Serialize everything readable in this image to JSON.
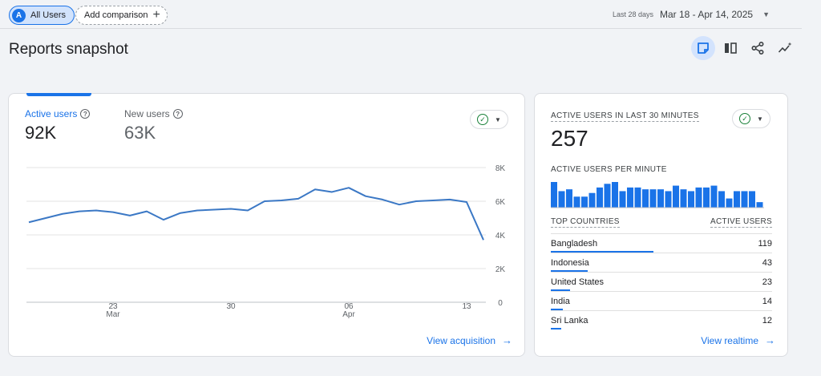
{
  "topbar": {
    "segment_avatar": "A",
    "segment_label": "All Users",
    "add_comparison_label": "Add comparison",
    "date_label": "Last 28 days",
    "date_value": "Mar 18 - Apr 14, 2025"
  },
  "page_title": "Reports snapshot",
  "toolbar": {
    "icons": [
      "customize-report-icon",
      "compare-icon",
      "share-icon",
      "insights-icon"
    ]
  },
  "overview_card": {
    "metrics": [
      {
        "label": "Active users",
        "value": "92K"
      },
      {
        "label": "New users",
        "value": "63K"
      }
    ],
    "view_link": "View acquisition"
  },
  "chart_data": {
    "type": "line",
    "series": [
      {
        "name": "Active users",
        "color": "#3b78c5",
        "values": [
          4750,
          5000,
          5250,
          5400,
          5450,
          5350,
          5150,
          5400,
          4900,
          5300,
          5450,
          5500,
          5550,
          5450,
          6000,
          6050,
          6150,
          6700,
          6550,
          6800,
          6300,
          6100,
          5800,
          6000,
          6050,
          6100,
          5950,
          3700
        ]
      }
    ],
    "x_tick_labels": [
      {
        "index": 5,
        "day": "23",
        "month": "Mar"
      },
      {
        "index": 12,
        "day": "30",
        "month": ""
      },
      {
        "index": 19,
        "day": "06",
        "month": "Apr"
      },
      {
        "index": 26,
        "day": "13",
        "month": ""
      }
    ],
    "y_ticks": [
      "0",
      "2K",
      "4K",
      "6K",
      "8K"
    ],
    "ylim": [
      0,
      8000
    ],
    "grid": true
  },
  "realtime_card": {
    "title": "ACTIVE USERS IN LAST 30 MINUTES",
    "value": "257",
    "per_minute_label": "ACTIVE USERS PER MINUTE",
    "per_minute_values": [
      14,
      9,
      10,
      6,
      6,
      8,
      11,
      13,
      14,
      9,
      11,
      11,
      10,
      10,
      10,
      9,
      12,
      10,
      9,
      11,
      11,
      12,
      9,
      5,
      9,
      9,
      9,
      3
    ],
    "countries_header": "TOP COUNTRIES",
    "users_header": "ACTIVE USERS",
    "countries": [
      {
        "name": "Bangladesh",
        "value": "119",
        "share": 1.0
      },
      {
        "name": "Indonesia",
        "value": "43",
        "share": 0.36
      },
      {
        "name": "United States",
        "value": "23",
        "share": 0.19
      },
      {
        "name": "India",
        "value": "14",
        "share": 0.12
      },
      {
        "name": "Sri Lanka",
        "value": "12",
        "share": 0.1
      }
    ],
    "view_link": "View realtime"
  }
}
